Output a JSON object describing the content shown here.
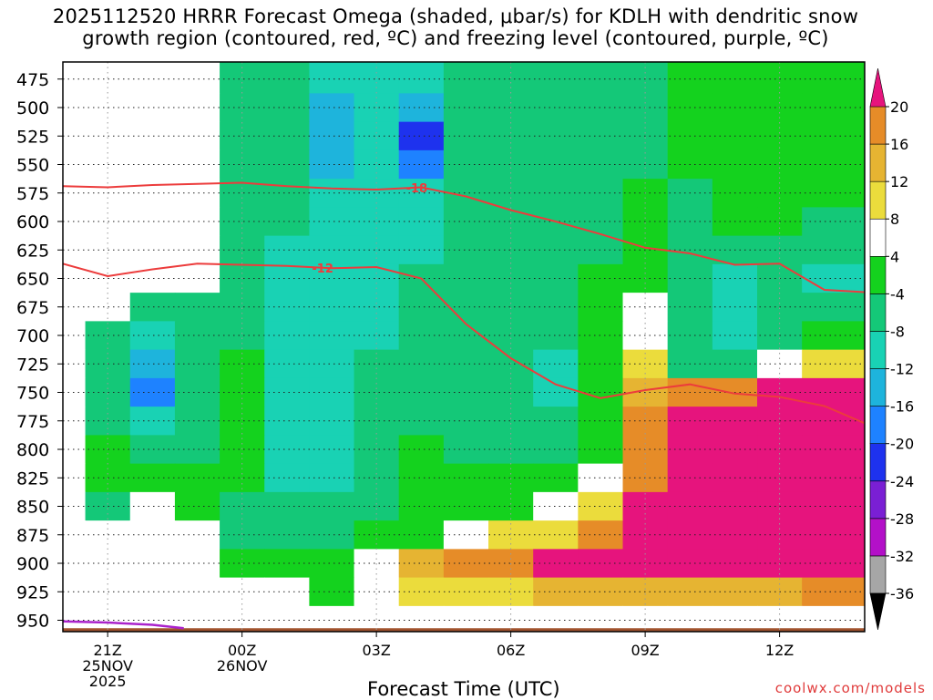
{
  "title_line1": "2025112520 HRRR Forecast Omega (shaded, μbar/s) for KDLH with dendritic snow",
  "title_line2": "growth region (contoured, red, ºC) and freezing level (contoured, purple, ºC)",
  "footer_url": "coolwx.com/models",
  "chart_data": {
    "type": "heatmap",
    "title": "2025112520 HRRR Forecast Omega (shaded, μbar/s) for KDLH with dendritic snow growth region (contoured, red, ºC) and freezing level (contoured, purple, ºC)",
    "xlabel": "Forecast Time (UTC)",
    "ylabel": "",
    "x_hours": [
      20,
      21,
      22,
      23,
      24,
      25,
      26,
      27,
      28,
      29,
      30,
      31,
      32,
      33,
      34,
      35,
      36,
      37
    ],
    "x_ticks": [
      {
        "hour": 21,
        "lines": [
          "21Z",
          "25NOV",
          "2025"
        ]
      },
      {
        "hour": 24,
        "lines": [
          "00Z",
          "26NOV"
        ]
      },
      {
        "hour": 27,
        "lines": [
          "03Z"
        ]
      },
      {
        "hour": 30,
        "lines": [
          "06Z"
        ]
      },
      {
        "hour": 33,
        "lines": [
          "09Z"
        ]
      },
      {
        "hour": 36,
        "lines": [
          "12Z"
        ]
      }
    ],
    "y_levels": [
      475,
      500,
      525,
      550,
      575,
      600,
      625,
      650,
      675,
      700,
      725,
      750,
      775,
      800,
      825,
      850,
      875,
      900,
      925,
      950
    ],
    "y_range_hpa": [
      460,
      960
    ],
    "x_range_hours": [
      20,
      37.9
    ],
    "grid": true,
    "colorbar": {
      "levels": [
        -36,
        -32,
        -28,
        -24,
        -20,
        -16,
        -12,
        -8,
        -4,
        4,
        8,
        12,
        16,
        20
      ],
      "colors": [
        "#a6a6a6",
        "#b310c8",
        "#7a1fd4",
        "#1e32ee",
        "#1e82ff",
        "#1eb4dc",
        "#19d2b4",
        "#14c878",
        "#14d21e",
        "#ffffff",
        "#ebdc3c",
        "#e6b432",
        "#e68c28",
        "#f05032",
        "#e6147d"
      ],
      "under_color": "#000000",
      "over_color": "#e6147d"
    },
    "omega_values": [
      [
        0,
        0,
        0,
        0,
        -4.5,
        -6,
        -10,
        -9,
        -10,
        -6,
        -6,
        -6,
        -7,
        -6,
        -4,
        -4,
        -4,
        -4
      ],
      [
        0,
        0,
        0,
        0,
        -5,
        -7,
        -14,
        -11,
        -16,
        -8,
        -6,
        -8,
        -8,
        -6,
        -3,
        -3,
        -3,
        -3
      ],
      [
        0,
        0,
        0,
        0,
        -5,
        -7,
        -15,
        -11,
        -21,
        -8,
        -6,
        -8,
        -8,
        -6,
        -2,
        -2,
        -2,
        -2
      ],
      [
        0,
        0,
        0,
        0,
        -5,
        -8,
        -16,
        -11,
        -18,
        -8,
        -6,
        -8,
        -7,
        -5,
        -2,
        -2,
        -2,
        -2
      ],
      [
        0,
        0,
        0,
        0,
        -5,
        -8,
        -12,
        -11,
        -12,
        -8,
        -6,
        -7,
        -6,
        -4,
        -5,
        -3,
        -2,
        -2
      ],
      [
        0,
        0,
        0,
        0,
        -5,
        -8,
        -11,
        -11,
        -10,
        -8,
        -6,
        -7,
        -5,
        -3,
        -6,
        -3,
        -4,
        -5
      ],
      [
        0,
        0,
        0,
        0,
        -5,
        -9,
        -11,
        -10,
        -9,
        -8,
        -6,
        -7,
        -5,
        -2,
        -7,
        -8,
        -5,
        -6
      ],
      [
        0,
        0,
        0,
        0,
        -5,
        -9,
        -11,
        -10,
        -8,
        -7,
        -6,
        -6,
        -4,
        -3,
        -7,
        -10,
        -7,
        -9
      ],
      [
        0,
        0,
        -5,
        -6,
        -6,
        -10,
        -11,
        -9,
        -6,
        -7,
        -6,
        -5,
        -4,
        0,
        -7,
        -11,
        -7,
        -8
      ],
      [
        0,
        -5,
        -9,
        -8,
        -6,
        -11,
        -12,
        -9,
        -5,
        -6,
        -6,
        -5,
        -4,
        5,
        -7,
        -9,
        -5,
        -4
      ],
      [
        0,
        -7,
        -15,
        -8,
        -4,
        -11,
        -12,
        -8,
        -5,
        -5,
        -6,
        -9,
        -4,
        10,
        -6,
        -6,
        6,
        10
      ],
      [
        0,
        -6,
        -18,
        -7,
        -2,
        -11,
        -11,
        -8,
        -5,
        -6,
        -6,
        -10,
        -4,
        14,
        16,
        17,
        20,
        24
      ],
      [
        0,
        -5,
        -12,
        -6,
        -3,
        -10,
        -11,
        -7,
        -5,
        -6,
        -6,
        -8,
        -3,
        16,
        24,
        24,
        24,
        24
      ],
      [
        0,
        -4,
        -8,
        -5,
        -4,
        -10,
        -10,
        -7,
        -4,
        -5,
        -5,
        -5,
        2,
        16,
        24,
        24,
        24,
        24
      ],
      [
        0,
        -3,
        -4,
        -4,
        -4,
        -9,
        -9,
        -6,
        -4,
        -4,
        -3,
        -3,
        6,
        18,
        24,
        24,
        24,
        24
      ],
      [
        0,
        -5,
        5,
        -4,
        -5,
        -8,
        -8,
        -5,
        -3,
        -3,
        3,
        6,
        10,
        20,
        24,
        24,
        24,
        24
      ],
      [
        0,
        0,
        5,
        0,
        -5,
        -6,
        -5,
        -4,
        2,
        6,
        8,
        10,
        18,
        24,
        24,
        24,
        24,
        24
      ],
      [
        0,
        0,
        0,
        0,
        -4,
        -2,
        3,
        6,
        12,
        16,
        18,
        20,
        22,
        24,
        24,
        24,
        24,
        24
      ],
      [
        0,
        0,
        0,
        0,
        0,
        0,
        3,
        6,
        8,
        10,
        10,
        12,
        12,
        12,
        12,
        12,
        14,
        16
      ],
      [
        0,
        0,
        0,
        0,
        0,
        0,
        0,
        4,
        4,
        5,
        5,
        6,
        6,
        6,
        6,
        6,
        6,
        6
      ]
    ],
    "dendritic_contours": [
      {
        "label": "-18",
        "label_hour": 27.9,
        "points": [
          [
            20,
            569
          ],
          [
            21,
            570
          ],
          [
            22,
            568
          ],
          [
            23,
            567
          ],
          [
            24,
            566
          ],
          [
            25,
            569
          ],
          [
            26,
            571
          ],
          [
            27,
            572
          ],
          [
            28,
            570
          ],
          [
            29,
            578
          ],
          [
            30,
            590
          ],
          [
            31,
            600
          ],
          [
            32,
            611
          ],
          [
            33,
            623
          ],
          [
            34,
            628
          ],
          [
            35,
            638
          ],
          [
            36,
            637
          ],
          [
            37,
            660
          ],
          [
            37.9,
            662
          ]
        ]
      },
      {
        "label": "-12",
        "label_hour": 25.8,
        "points": [
          [
            20,
            637
          ],
          [
            21,
            648
          ],
          [
            22,
            642
          ],
          [
            23,
            637
          ],
          [
            24,
            638
          ],
          [
            25,
            639
          ],
          [
            26,
            641
          ],
          [
            27,
            640
          ],
          [
            28,
            650
          ],
          [
            29,
            690
          ],
          [
            30,
            720
          ],
          [
            31,
            743
          ],
          [
            32,
            755
          ],
          [
            33,
            748
          ],
          [
            34,
            743
          ],
          [
            35,
            751
          ],
          [
            36,
            754
          ],
          [
            37,
            762
          ],
          [
            37.9,
            777
          ]
        ]
      }
    ],
    "freezing_level_contour": {
      "color": "#aa22cc",
      "points": [
        [
          20,
          951
        ],
        [
          21,
          952
        ],
        [
          22,
          954
        ],
        [
          22.7,
          957
        ]
      ]
    },
    "ground_level_hpa": 957
  }
}
